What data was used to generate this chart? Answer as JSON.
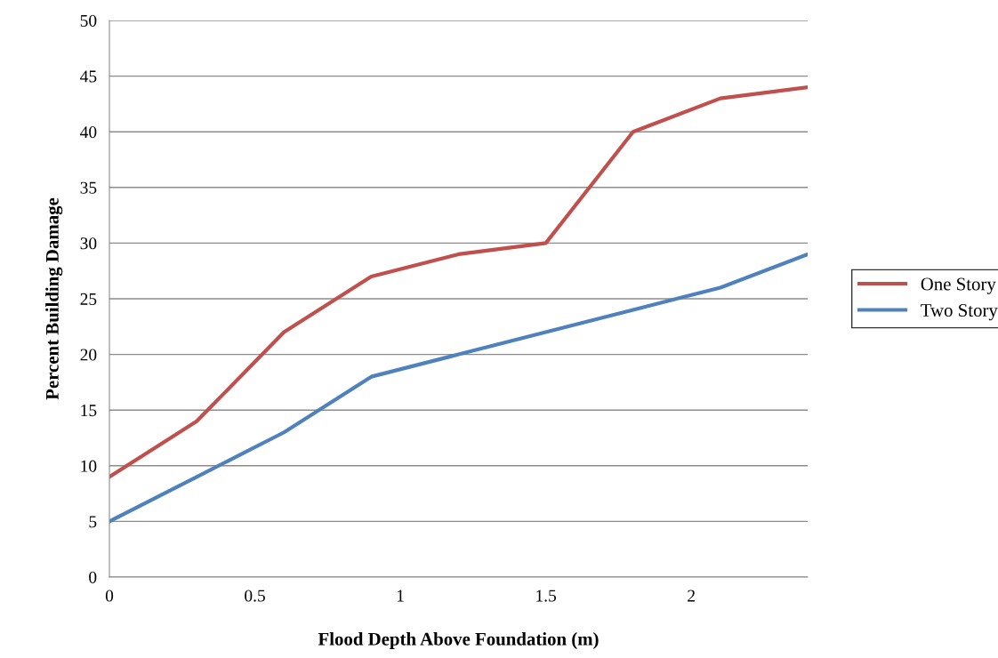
{
  "chart_data": {
    "type": "line",
    "xlabel": "Flood Depth Above Foundation (m)",
    "ylabel": "Percent Building Damage",
    "x": [
      0,
      0.3,
      0.6,
      0.9,
      1.2,
      1.5,
      1.8,
      2.1,
      2.4
    ],
    "series": [
      {
        "name": "One Story",
        "color": "#c0504d",
        "values": [
          9,
          14,
          22,
          27,
          29,
          30,
          40,
          43,
          44
        ]
      },
      {
        "name": "Two Story",
        "color": "#4f81bd",
        "values": [
          5,
          9,
          13,
          18,
          20,
          22,
          24,
          26,
          29
        ]
      }
    ],
    "xlim": [
      0,
      2.4
    ],
    "xticks": [
      0,
      0.5,
      1,
      1.5,
      2
    ],
    "ylim": [
      0,
      50
    ],
    "yticks": [
      0,
      5,
      10,
      15,
      20,
      25,
      30,
      35,
      40,
      45,
      50
    ],
    "grid": "y",
    "legend": "right",
    "marker": "none",
    "line_style": "solid"
  }
}
